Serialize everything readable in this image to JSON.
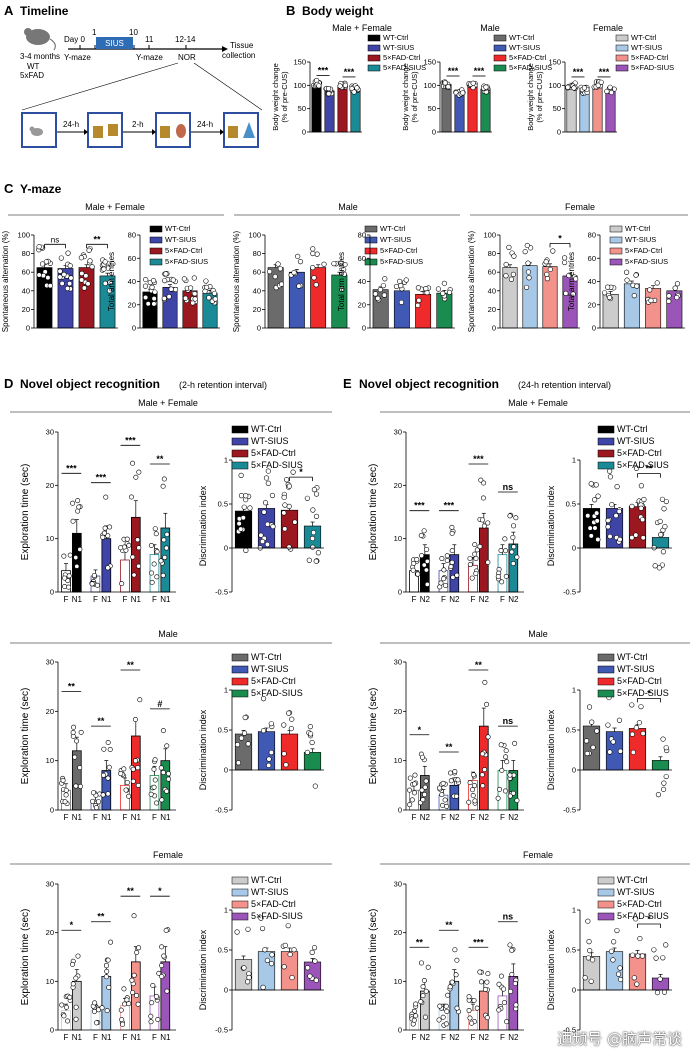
{
  "colors": {
    "allSex": [
      "#000000",
      "#3f44a7",
      "#9c1820",
      "#1a8a96"
    ],
    "male": [
      "#6b6b6b",
      "#3f59b4",
      "#ee2a2a",
      "#1a8c50"
    ],
    "female": [
      "#cccccc",
      "#a8c8e8",
      "#f2928b",
      "#9b55b8"
    ]
  },
  "panelA": {
    "label": "A",
    "title": "Timeline",
    "mouse_age": "3-4 months",
    "mouse_geno1": "WT",
    "mouse_geno2": "5xFAD",
    "day_labels": [
      "Day 0",
      "1",
      "10",
      "11",
      "12-14"
    ],
    "sius": "SIUS",
    "ymaze1": "Y-maze",
    "ymaze2": "Y-maze",
    "nor": "NOR",
    "tissue1": "Tissue",
    "tissue2": "collection",
    "interval1": "24-h",
    "interval2": "2-h",
    "interval3": "24-h"
  },
  "panelB": {
    "label": "B",
    "title": "Body weight"
  },
  "panelC": {
    "label": "C",
    "title": "Y-maze"
  },
  "panelD": {
    "label": "D",
    "title": "Novel object recognition",
    "subtitle": "(2-h retention interval)"
  },
  "panelE": {
    "label": "E",
    "title": "Novel object recognition",
    "subtitle": "(24-h retention interval)"
  },
  "section_titles": {
    "mf": "Male + Female",
    "male": "Male",
    "female": "Female"
  },
  "legends": {
    "body_weight": [
      "WT-Ctrl",
      "WT-SIUS",
      "5×FAD-Ctrl",
      "5×FAD-SIUS"
    ],
    "nor": [
      "WT-Ctrl",
      "WT-SIUS",
      "5×FAD-Ctrl",
      "5×FAD-SIUS"
    ]
  },
  "axis_labels": {
    "body_weight": "Body weight change",
    "body_weight2": "(% of pre-CUS)",
    "alternation": "Spontaneous alternation (%)",
    "arm_entries": "Total arm entries",
    "exploration": "Exploration time (sec)",
    "discrimination": "Discrimination index"
  },
  "x_tick_labels": {
    "nor_2h": [
      "F",
      "N1"
    ],
    "nor_24h": [
      "F",
      "N2"
    ]
  },
  "watermark": "迺频号 @脑声常谈",
  "chart_data": [
    {
      "id": "B_mf",
      "panel": "B",
      "type": "bar",
      "title": "Male + Female",
      "palette": "allSex",
      "categories": [
        "WT-Ctrl",
        "WT-SIUS",
        "5×FAD-Ctrl",
        "5×FAD-SIUS"
      ],
      "values": [
        103,
        88,
        100,
        92
      ],
      "ylim": [
        0,
        150
      ],
      "yticks": [
        0,
        50,
        100,
        150
      ],
      "ylabel": "Body weight change",
      "sig": [
        {
          "a": 0,
          "b": 1,
          "label": "***"
        },
        {
          "a": 2,
          "b": 3,
          "label": "***"
        }
      ]
    },
    {
      "id": "B_male",
      "panel": "B",
      "type": "bar",
      "title": "Male",
      "palette": "male",
      "categories": [
        "WT-Ctrl",
        "WT-SIUS",
        "5×FAD-Ctrl",
        "5×FAD-SIUS"
      ],
      "values": [
        102,
        86,
        102,
        92
      ],
      "ylim": [
        0,
        150
      ],
      "yticks": [
        0,
        50,
        100,
        150
      ],
      "ylabel": "Body weight change",
      "sig": [
        {
          "a": 0,
          "b": 1,
          "label": "***"
        },
        {
          "a": 2,
          "b": 3,
          "label": "***"
        }
      ]
    },
    {
      "id": "B_female",
      "panel": "B",
      "type": "bar",
      "title": "Female",
      "palette": "female",
      "categories": [
        "WT-Ctrl",
        "WT-SIUS",
        "5×FAD-Ctrl",
        "5×FAD-SIUS"
      ],
      "values": [
        100,
        90,
        100,
        90
      ],
      "ylim": [
        0,
        150
      ],
      "yticks": [
        0,
        50,
        100,
        150
      ],
      "ylabel": "Body weight change",
      "sig": [
        {
          "a": 0,
          "b": 1,
          "label": "***"
        },
        {
          "a": 2,
          "b": 3,
          "label": "***"
        }
      ]
    },
    {
      "id": "C_mf_alt",
      "panel": "C",
      "type": "bar",
      "title": "Male + Female",
      "palette": "allSex",
      "categories": [
        "WT-Ctrl",
        "WT-SIUS",
        "5×FAD-Ctrl",
        "5×FAD-SIUS"
      ],
      "values": [
        65,
        64,
        65,
        56
      ],
      "ylim": [
        0,
        100
      ],
      "yticks": [
        0,
        20,
        40,
        60,
        80,
        100
      ],
      "ylabel": "Spontaneous alternation (%)",
      "sig": [
        {
          "a": 0,
          "b": 1,
          "label": "ns"
        },
        {
          "a": 2,
          "b": 3,
          "label": "**"
        }
      ]
    },
    {
      "id": "C_mf_arm",
      "panel": "C",
      "type": "bar",
      "palette": "allSex",
      "categories": [
        "WT-Ctrl",
        "WT-SIUS",
        "5×FAD-Ctrl",
        "5×FAD-SIUS"
      ],
      "values": [
        31,
        35,
        32,
        30
      ],
      "ylim": [
        0,
        80
      ],
      "yticks": [
        0,
        20,
        40,
        60,
        80
      ],
      "ylabel": "Total arm entries",
      "sig": []
    },
    {
      "id": "C_male_alt",
      "panel": "C",
      "type": "bar",
      "title": "Male",
      "palette": "male",
      "categories": [
        "WT-Ctrl",
        "WT-SIUS",
        "5×FAD-Ctrl",
        "5×FAD-SIUS"
      ],
      "values": [
        65,
        60,
        65,
        57
      ],
      "ylim": [
        0,
        100
      ],
      "yticks": [
        0,
        20,
        40,
        60,
        80,
        100
      ],
      "ylabel": "Spontaneous alternation (%)",
      "sig": []
    },
    {
      "id": "C_male_arm",
      "panel": "C",
      "type": "bar",
      "palette": "male",
      "categories": [
        "WT-Ctrl",
        "WT-SIUS",
        "5×FAD-Ctrl",
        "5×FAD-SIUS"
      ],
      "values": [
        33,
        32,
        29,
        30
      ],
      "ylim": [
        0,
        80
      ],
      "yticks": [
        0,
        20,
        40,
        60,
        80
      ],
      "ylabel": "Total arm entries",
      "sig": []
    },
    {
      "id": "C_female_alt",
      "panel": "C",
      "type": "bar",
      "title": "Female",
      "palette": "female",
      "categories": [
        "WT-Ctrl",
        "WT-SIUS",
        "5×FAD-Ctrl",
        "5×FAD-SIUS"
      ],
      "values": [
        65,
        67,
        66,
        56
      ],
      "ylim": [
        0,
        100
      ],
      "yticks": [
        0,
        20,
        40,
        60,
        80,
        100
      ],
      "ylabel": "Spontaneous alternation (%)",
      "sig": [
        {
          "a": 2,
          "b": 3,
          "label": "*"
        }
      ]
    },
    {
      "id": "C_female_arm",
      "panel": "C",
      "type": "bar",
      "palette": "female",
      "categories": [
        "WT-Ctrl",
        "WT-SIUS",
        "5×FAD-Ctrl",
        "5×FAD-SIUS"
      ],
      "values": [
        29,
        38,
        34,
        32
      ],
      "ylim": [
        0,
        80
      ],
      "yticks": [
        0,
        20,
        40,
        60,
        80
      ],
      "ylabel": "Total arm entries",
      "sig": []
    },
    {
      "id": "D_mf_expl",
      "panel": "D",
      "type": "bar",
      "palette": "allSex",
      "paired": true,
      "ticks": "F,N1",
      "categories": [
        "WT-Ctrl",
        "WT-SIUS",
        "5×FAD-Ctrl",
        "5×FAD-SIUS"
      ],
      "values": [
        [
          4,
          11
        ],
        [
          3,
          10
        ],
        [
          6,
          14
        ],
        [
          7,
          12
        ]
      ],
      "ylim": [
        0,
        30
      ],
      "yticks": [
        0,
        10,
        20,
        30
      ],
      "ylabel": "Exploration time (sec)",
      "sig": [
        "***",
        "***",
        "***",
        "**"
      ]
    },
    {
      "id": "D_mf_di",
      "panel": "D",
      "type": "bar",
      "palette": "allSex",
      "categories": [
        "WT-Ctrl",
        "WT-SIUS",
        "5×FAD-Ctrl",
        "5×FAD-SIUS"
      ],
      "values": [
        0.42,
        0.45,
        0.43,
        0.25
      ],
      "ylim": [
        -0.5,
        1.0
      ],
      "yticks": [
        -0.5,
        0.0,
        0.5,
        1.0
      ],
      "ylabel": "Discrimination index",
      "sig": [
        {
          "a": 2,
          "b": 3,
          "label": "*"
        }
      ]
    },
    {
      "id": "D_male_expl",
      "panel": "D",
      "type": "bar",
      "palette": "male",
      "paired": true,
      "ticks": "F,N1",
      "categories": [
        "WT-Ctrl",
        "WT-SIUS",
        "5×FAD-Ctrl",
        "5×FAD-SIUS"
      ],
      "values": [
        [
          4,
          12
        ],
        [
          2,
          8
        ],
        [
          5,
          15
        ],
        [
          7,
          10
        ]
      ],
      "ylim": [
        0,
        30
      ],
      "yticks": [
        0,
        10,
        20,
        30
      ],
      "ylabel": "Exploration time (sec)",
      "sig": [
        "**",
        "**",
        "**",
        "#"
      ]
    },
    {
      "id": "D_male_di",
      "panel": "D",
      "type": "bar",
      "palette": "male",
      "categories": [
        "WT-Ctrl",
        "WT-SIUS",
        "5×FAD-Ctrl",
        "5×FAD-SIUS"
      ],
      "values": [
        0.45,
        0.48,
        0.45,
        0.22
      ],
      "ylim": [
        -0.5,
        1.0
      ],
      "yticks": [
        -0.5,
        0.0,
        0.5,
        1.0
      ],
      "ylabel": "Discrimination index",
      "sig": []
    },
    {
      "id": "D_female_expl",
      "panel": "D",
      "type": "bar",
      "palette": "female",
      "paired": true,
      "ticks": "F,N1",
      "categories": [
        "WT-Ctrl",
        "WT-SIUS",
        "5×FAD-Ctrl",
        "5×FAD-SIUS"
      ],
      "values": [
        [
          4,
          10
        ],
        [
          4,
          11
        ],
        [
          5,
          14
        ],
        [
          7,
          14
        ]
      ],
      "ylim": [
        0,
        30
      ],
      "yticks": [
        0,
        10,
        20,
        30
      ],
      "ylabel": "Exploration time (sec)",
      "sig": [
        "*",
        "**",
        "**",
        "*"
      ]
    },
    {
      "id": "D_female_di",
      "panel": "D",
      "type": "bar",
      "palette": "female",
      "categories": [
        "WT-Ctrl",
        "WT-SIUS",
        "5×FAD-Ctrl",
        "5×FAD-SIUS"
      ],
      "values": [
        0.38,
        0.48,
        0.48,
        0.35
      ],
      "ylim": [
        -0.5,
        1.0
      ],
      "yticks": [
        -0.5,
        0.0,
        0.5,
        1.0
      ],
      "ylabel": "Discrimination index",
      "sig": []
    },
    {
      "id": "E_mf_expl",
      "panel": "E",
      "type": "bar",
      "palette": "allSex",
      "paired": true,
      "ticks": "F,N2",
      "categories": [
        "WT-Ctrl",
        "WT-SIUS",
        "5×FAD-Ctrl",
        "5×FAD-SIUS"
      ],
      "values": [
        [
          4,
          7
        ],
        [
          4,
          7
        ],
        [
          5,
          12
        ],
        [
          7,
          9
        ]
      ],
      "ylim": [
        0,
        30
      ],
      "yticks": [
        0,
        10,
        20,
        30
      ],
      "ylabel": "Exploration time (sec)",
      "sig": [
        "***",
        "***",
        "***",
        "ns"
      ]
    },
    {
      "id": "E_mf_di",
      "panel": "E",
      "type": "bar",
      "palette": "allSex",
      "categories": [
        "WT-Ctrl",
        "WT-SIUS",
        "5×FAD-Ctrl",
        "5×FAD-SIUS"
      ],
      "values": [
        0.45,
        0.45,
        0.47,
        0.12
      ],
      "ylim": [
        -0.5,
        1.0
      ],
      "yticks": [
        -0.5,
        0.0,
        0.5,
        1.0
      ],
      "ylabel": "Discrimination index",
      "sig": [
        {
          "a": 2,
          "b": 3,
          "label": "**"
        }
      ]
    },
    {
      "id": "E_male_expl",
      "panel": "E",
      "type": "bar",
      "palette": "male",
      "paired": true,
      "ticks": "F,N2",
      "categories": [
        "WT-Ctrl",
        "WT-SIUS",
        "5×FAD-Ctrl",
        "5×FAD-SIUS"
      ],
      "values": [
        [
          4,
          7
        ],
        [
          3,
          5
        ],
        [
          6,
          17
        ],
        [
          8,
          8
        ]
      ],
      "ylim": [
        0,
        30
      ],
      "yticks": [
        0,
        10,
        20,
        30
      ],
      "ylabel": "Exploration time (sec)",
      "sig": [
        "*",
        "**",
        "**",
        "ns"
      ]
    },
    {
      "id": "E_male_di",
      "panel": "E",
      "type": "bar",
      "palette": "male",
      "categories": [
        "WT-Ctrl",
        "WT-SIUS",
        "5×FAD-Ctrl",
        "5×FAD-SIUS"
      ],
      "values": [
        0.55,
        0.48,
        0.52,
        0.12
      ],
      "ylim": [
        -0.5,
        1.0
      ],
      "yticks": [
        -0.5,
        0.0,
        0.5,
        1.0
      ],
      "ylabel": "Discrimination index",
      "sig": [
        {
          "a": 2,
          "b": 3,
          "label": "*"
        }
      ]
    },
    {
      "id": "E_female_expl",
      "panel": "E",
      "type": "bar",
      "palette": "female",
      "paired": true,
      "ticks": "F,N2",
      "categories": [
        "WT-Ctrl",
        "WT-SIUS",
        "5×FAD-Ctrl",
        "5×FAD-SIUS"
      ],
      "values": [
        [
          3,
          8
        ],
        [
          4,
          10
        ],
        [
          4,
          8
        ],
        [
          7,
          11
        ]
      ],
      "ylim": [
        0,
        30
      ],
      "yticks": [
        0,
        10,
        20,
        30
      ],
      "ylabel": "Exploration time (sec)",
      "sig": [
        "**",
        "**",
        "***",
        "ns"
      ]
    },
    {
      "id": "E_female_di",
      "panel": "E",
      "type": "bar",
      "palette": "female",
      "categories": [
        "WT-Ctrl",
        "WT-SIUS",
        "5×FAD-Ctrl",
        "5×FAD-SIUS"
      ],
      "values": [
        0.42,
        0.48,
        0.45,
        0.15
      ],
      "ylim": [
        -0.5,
        1.0
      ],
      "yticks": [
        -0.5,
        0.0,
        0.5,
        1.0
      ],
      "ylabel": "Discrimination index",
      "sig": [
        {
          "a": 2,
          "b": 3,
          "label": "*"
        }
      ]
    }
  ]
}
